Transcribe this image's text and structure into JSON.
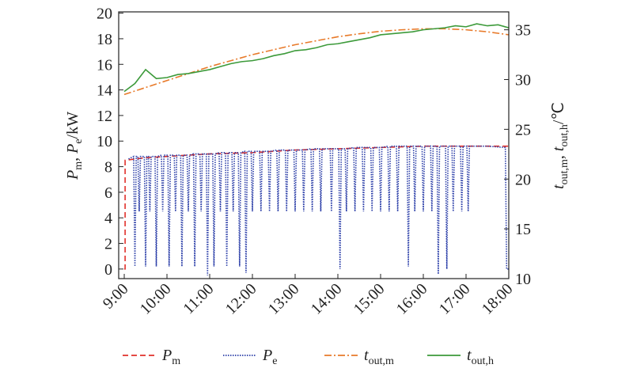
{
  "chart_data": {
    "type": "line",
    "y_label": "Pm, Pe/kW",
    "y2_label": "tout,m, tout,h/℃",
    "xlim": [
      8.87,
      18
    ],
    "xticks": [
      {
        "value": 9,
        "label": "9:00"
      },
      {
        "value": 10,
        "label": "10:00"
      },
      {
        "value": 11,
        "label": "11:00"
      },
      {
        "value": 12,
        "label": "12:00"
      },
      {
        "value": 13,
        "label": "13:00"
      },
      {
        "value": 14,
        "label": "14:00"
      },
      {
        "value": 15,
        "label": "15:00"
      },
      {
        "value": 16,
        "label": "16:00"
      },
      {
        "value": 17,
        "label": "17:00"
      },
      {
        "value": 18,
        "label": "18:00"
      }
    ],
    "ylim": [
      -0.75,
      20.1
    ],
    "yticks": [
      0,
      2,
      4,
      6,
      8,
      10,
      12,
      14,
      16,
      18,
      20
    ],
    "y2lim": [
      10,
      36.8
    ],
    "y2ticks": [
      10,
      15,
      20,
      25,
      30,
      35
    ],
    "series": [
      {
        "name": "Pm",
        "color": "#e0302a",
        "dash": "7,4",
        "x": [
          9.0,
          9.02,
          9.02,
          9.5,
          10,
          11,
          12,
          13,
          14,
          15,
          16,
          17,
          18
        ],
        "values": [
          0,
          0,
          8.5,
          8.7,
          8.8,
          9.0,
          9.1,
          9.3,
          9.4,
          9.5,
          9.6,
          9.6,
          9.6
        ]
      },
      {
        "name": "Pe",
        "color": "#2b3ea8",
        "dash": "1.5,1.5",
        "x": [
          9.1,
          9.22,
          9.25,
          9.28,
          9.32,
          9.35,
          9.38,
          9.47,
          9.5,
          9.53,
          9.57,
          9.6,
          9.63,
          9.72,
          9.75,
          9.78,
          9.87,
          9.9,
          9.93,
          10.02,
          10.05,
          10.08,
          10.17,
          10.2,
          10.23,
          10.32,
          10.35,
          10.38,
          10.47,
          10.5,
          10.53,
          10.62,
          10.65,
          10.68,
          10.77,
          10.8,
          10.83,
          10.92,
          10.95,
          10.98,
          11.07,
          11.1,
          11.13,
          11.22,
          11.25,
          11.28,
          11.37,
          11.4,
          11.43,
          11.52,
          11.55,
          11.58,
          11.67,
          11.7,
          11.73,
          11.82,
          11.85,
          11.88,
          11.97,
          12,
          12.03,
          12.17,
          12.2,
          12.23,
          12.37,
          12.4,
          12.43,
          12.57,
          12.6,
          12.63,
          12.77,
          12.8,
          12.83,
          12.97,
          13,
          13.03,
          13.17,
          13.2,
          13.23,
          13.37,
          13.4,
          13.43,
          13.57,
          13.6,
          13.63,
          13.82,
          13.85,
          13.88,
          14.02,
          14.05,
          14.08,
          14.17,
          14.2,
          14.23,
          14.37,
          14.4,
          14.43,
          14.57,
          14.6,
          14.63,
          14.77,
          14.8,
          14.83,
          14.97,
          15,
          15.03,
          15.17,
          15.2,
          15.23,
          15.37,
          15.4,
          15.43,
          15.62,
          15.65,
          15.68,
          15.77,
          15.8,
          15.83,
          15.97,
          16,
          16.03,
          16.17,
          16.2,
          16.23,
          16.32,
          16.35,
          16.38,
          16.52,
          16.55,
          16.58,
          16.67,
          16.7,
          16.73,
          16.87,
          16.9,
          16.93,
          17.02,
          17.05,
          17.08,
          17.5,
          17.92,
          17.95,
          18
        ],
        "values": [
          8.6,
          8.8,
          0.2,
          8.8,
          8.8,
          4.5,
          8.8,
          8.8,
          0.2,
          8.8,
          8.8,
          4.5,
          8.8,
          8.8,
          0.2,
          8.8,
          8.9,
          4.5,
          8.9,
          8.9,
          0.2,
          8.9,
          8.9,
          4.5,
          8.9,
          8.9,
          0.2,
          8.9,
          8.9,
          4.5,
          8.9,
          9.0,
          0.2,
          9.0,
          9.0,
          4.5,
          9.0,
          9.0,
          -0.5,
          9.0,
          9.0,
          0.2,
          9.0,
          9.1,
          4.5,
          9.1,
          9.1,
          0.2,
          9.1,
          9.1,
          4.5,
          9.1,
          9.1,
          0.2,
          9.1,
          9.2,
          -0.3,
          9.2,
          9.2,
          4.5,
          9.2,
          9.2,
          4.5,
          9.2,
          9.2,
          4.5,
          9.2,
          9.3,
          4.5,
          9.3,
          9.3,
          4.5,
          9.3,
          9.3,
          4.5,
          9.3,
          9.3,
          4.5,
          9.3,
          9.4,
          4.5,
          9.4,
          9.4,
          4.5,
          9.4,
          9.4,
          4.5,
          9.4,
          9.4,
          0,
          9.4,
          9.4,
          4.5,
          9.4,
          9.5,
          4.5,
          9.5,
          9.5,
          4.5,
          9.5,
          9.5,
          4.5,
          9.5,
          9.5,
          4.5,
          9.5,
          9.6,
          4.5,
          9.6,
          9.6,
          4.5,
          9.6,
          9.6,
          0.2,
          9.6,
          9.6,
          4.5,
          9.6,
          9.6,
          4.5,
          9.6,
          9.6,
          4.5,
          9.6,
          9.6,
          -0.4,
          9.6,
          9.6,
          0,
          9.6,
          9.6,
          4.5,
          9.6,
          9.6,
          4.5,
          9.6,
          9.6,
          4.5,
          9.6,
          9.6,
          9.5,
          0,
          0
        ]
      },
      {
        "name": "tout,m",
        "color": "#e87a2a",
        "dash": "9,3,2,3",
        "axis": "y2",
        "x": [
          9,
          9.5,
          10,
          10.5,
          11,
          11.5,
          12,
          12.5,
          13,
          13.5,
          14,
          14.5,
          15,
          15.5,
          16,
          16.5,
          17,
          17.5,
          18
        ],
        "values": [
          28.5,
          29.2,
          29.9,
          30.6,
          31.3,
          31.9,
          32.5,
          33.0,
          33.5,
          33.9,
          34.3,
          34.6,
          34.85,
          35.0,
          35.1,
          35.1,
          35.0,
          34.8,
          34.5
        ]
      },
      {
        "name": "tout,h",
        "color": "#3c9a3a",
        "axis": "y2",
        "x": [
          9,
          9.25,
          9.5,
          9.75,
          10,
          10.25,
          10.5,
          10.75,
          11,
          11.25,
          11.5,
          11.75,
          12,
          12.25,
          12.5,
          12.75,
          13,
          13.25,
          13.5,
          13.75,
          14,
          14.25,
          14.5,
          14.75,
          15,
          15.25,
          15.5,
          15.75,
          16,
          16.25,
          16.5,
          16.75,
          17,
          17.25,
          17.5,
          17.75,
          18
        ],
        "values": [
          28.8,
          29.6,
          31.0,
          30.1,
          30.2,
          30.5,
          30.6,
          30.8,
          31.0,
          31.3,
          31.6,
          31.8,
          31.9,
          32.1,
          32.4,
          32.6,
          32.9,
          33.0,
          33.2,
          33.5,
          33.6,
          33.8,
          34.0,
          34.2,
          34.5,
          34.6,
          34.7,
          34.8,
          35.0,
          35.1,
          35.2,
          35.4,
          35.3,
          35.6,
          35.4,
          35.5,
          35.2
        ]
      }
    ]
  }
}
